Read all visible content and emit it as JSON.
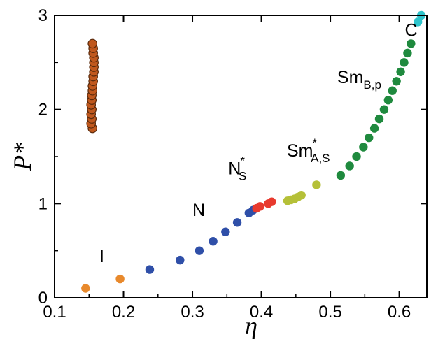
{
  "chart_data": {
    "type": "scatter",
    "xlabel": "η",
    "ylabel": "P*",
    "xlim": [
      0.1,
      0.64
    ],
    "ylim": [
      0,
      3
    ],
    "xticks": [
      "0.1",
      "0.2",
      "0.3",
      "0.4",
      "0.5",
      "0.6"
    ],
    "xtick_values": [
      0.1,
      0.2,
      0.3,
      0.4,
      0.5,
      0.6
    ],
    "yticks": [
      "0",
      "1",
      "2",
      "3"
    ],
    "ytick_values": [
      0,
      1,
      2,
      3
    ],
    "grid": false,
    "series": [
      {
        "phase": "I",
        "color": "#e8892c",
        "points": [
          [
            0.145,
            0.1
          ],
          [
            0.195,
            0.2
          ]
        ]
      },
      {
        "phase": "N",
        "color": "#2f4fa8",
        "points": [
          [
            0.238,
            0.3
          ],
          [
            0.282,
            0.4
          ],
          [
            0.31,
            0.5
          ],
          [
            0.33,
            0.6
          ],
          [
            0.348,
            0.7
          ],
          [
            0.365,
            0.8
          ],
          [
            0.382,
            0.9
          ],
          [
            0.388,
            0.93
          ]
        ]
      },
      {
        "phase": "NS*",
        "color": "#e83a2e",
        "points": [
          [
            0.393,
            0.95
          ],
          [
            0.398,
            0.97
          ],
          [
            0.41,
            1.0
          ],
          [
            0.415,
            1.02
          ]
        ]
      },
      {
        "phase": "SmA,S*",
        "color": "#b5c038",
        "points": [
          [
            0.438,
            1.03
          ],
          [
            0.443,
            1.04
          ],
          [
            0.448,
            1.05
          ],
          [
            0.453,
            1.07
          ],
          [
            0.458,
            1.09
          ],
          [
            0.48,
            1.2
          ]
        ]
      },
      {
        "phase": "SmB,p",
        "color": "#1f8a3e",
        "points": [
          [
            0.515,
            1.3
          ],
          [
            0.528,
            1.4
          ],
          [
            0.538,
            1.5
          ],
          [
            0.548,
            1.6
          ],
          [
            0.556,
            1.7
          ],
          [
            0.564,
            1.8
          ],
          [
            0.571,
            1.9
          ],
          [
            0.578,
            2.0
          ],
          [
            0.584,
            2.1
          ],
          [
            0.59,
            2.2
          ],
          [
            0.596,
            2.3
          ],
          [
            0.602,
            2.4
          ],
          [
            0.607,
            2.5
          ],
          [
            0.612,
            2.6
          ],
          [
            0.617,
            2.7
          ]
        ]
      },
      {
        "phase": "C",
        "color": "#2fc4cc",
        "points": [
          [
            0.627,
            2.93
          ],
          [
            0.632,
            3.0
          ]
        ]
      },
      {
        "phase": "",
        "color": "#c0581d",
        "outline": "#5a2a0c",
        "points": [
          [
            0.155,
            1.8
          ],
          [
            0.153,
            1.85
          ],
          [
            0.154,
            1.9
          ],
          [
            0.153,
            1.95
          ],
          [
            0.154,
            2.0
          ],
          [
            0.153,
            2.05
          ],
          [
            0.154,
            2.1
          ],
          [
            0.154,
            2.15
          ],
          [
            0.155,
            2.2
          ],
          [
            0.155,
            2.25
          ],
          [
            0.156,
            2.3
          ],
          [
            0.156,
            2.35
          ],
          [
            0.157,
            2.4
          ],
          [
            0.157,
            2.45
          ],
          [
            0.157,
            2.5
          ],
          [
            0.157,
            2.55
          ],
          [
            0.156,
            2.6
          ],
          [
            0.156,
            2.65
          ],
          [
            0.155,
            2.7
          ]
        ]
      }
    ],
    "annotations": [
      {
        "name": "label-I",
        "main": "I",
        "sub": "",
        "sup": "",
        "x": 0.165,
        "y": 0.38
      },
      {
        "name": "label-N",
        "main": "N",
        "sub": "",
        "sup": "",
        "x": 0.3,
        "y": 0.87
      },
      {
        "name": "label-NS",
        "main": "N",
        "sub": "S",
        "sup": "*",
        "x": 0.352,
        "y": 1.31
      },
      {
        "name": "label-SmAS",
        "main": "Sm",
        "sub": "A,S",
        "sup": "*",
        "x": 0.437,
        "y": 1.5
      },
      {
        "name": "label-SmBp",
        "main": "Sm",
        "sub": "B,p",
        "sup": "",
        "x": 0.51,
        "y": 2.28
      },
      {
        "name": "label-C",
        "main": "C",
        "sub": "",
        "sup": "",
        "x": 0.608,
        "y": 2.78
      }
    ]
  }
}
